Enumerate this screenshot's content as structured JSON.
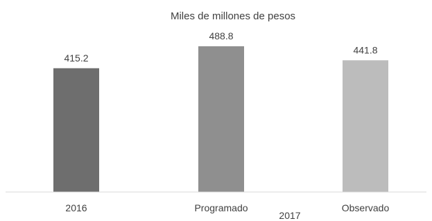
{
  "chart_data": {
    "type": "bar",
    "title": "Miles de millones de pesos",
    "categories": [
      "2016",
      "Programado",
      "Observado"
    ],
    "values": [
      415.2,
      488.8,
      441.8
    ],
    "value_labels": [
      "415.2",
      "488.8",
      "441.8"
    ],
    "group_label": "2017",
    "colors": [
      "#6e6e6e",
      "#8f8f8f",
      "#bcbcbc"
    ],
    "ylim": [
      0,
      488.8
    ],
    "grid": false,
    "legend": "none"
  }
}
